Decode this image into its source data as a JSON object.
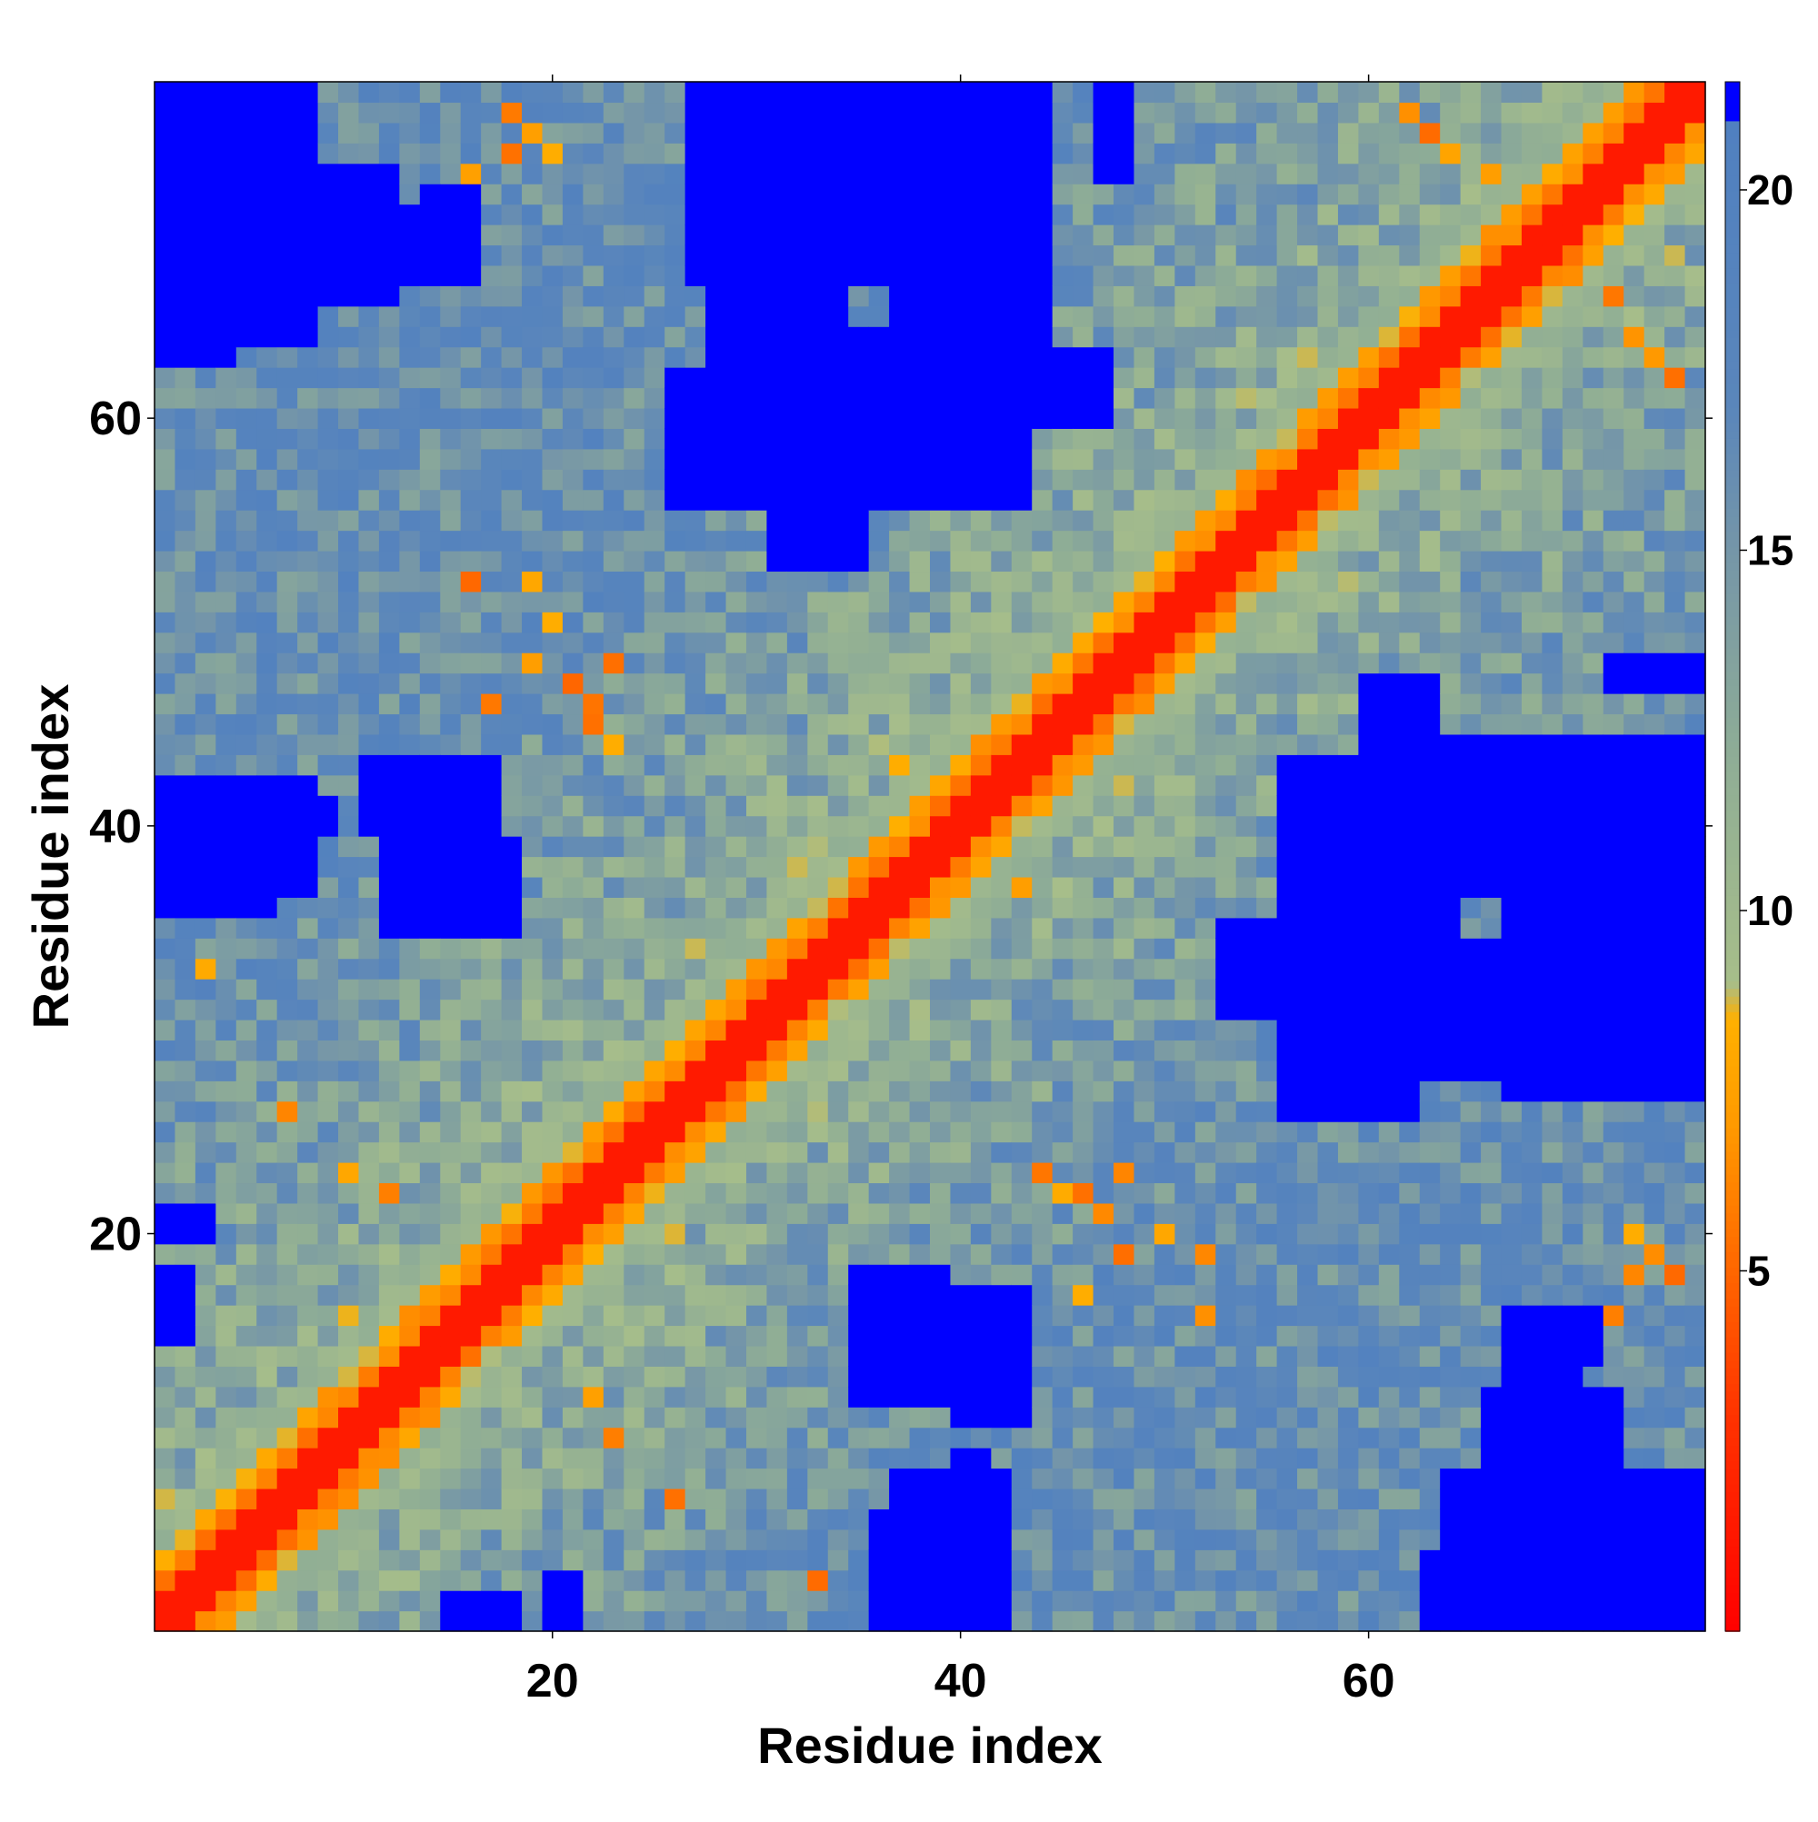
{
  "chart_data": {
    "type": "heatmap",
    "title": "",
    "xlabel": "Residue index",
    "ylabel": "Residue index",
    "n_residues": 76,
    "xlim": [
      1,
      76
    ],
    "ylim": [
      1,
      76
    ],
    "x_ticks": [
      20,
      40,
      60
    ],
    "x_tick_labels": [
      "20",
      "40",
      "60"
    ],
    "y_ticks": [
      20,
      40,
      60
    ],
    "y_tick_labels": [
      "20",
      "40",
      "60"
    ],
    "colorbar": {
      "range": [
        0,
        21.5
      ],
      "ticks": [
        5,
        10,
        15,
        20
      ],
      "tick_labels": [
        "5",
        "10",
        "15",
        "20"
      ],
      "saturation_above": 21,
      "stops": [
        {
          "value": 0,
          "color": "#ff0000"
        },
        {
          "value": 3,
          "color": "#ff3300"
        },
        {
          "value": 5,
          "color": "#ff6600"
        },
        {
          "value": 7,
          "color": "#ff9900"
        },
        {
          "value": 8.5,
          "color": "#ffb000"
        },
        {
          "value": 9,
          "color": "#a7be8a"
        },
        {
          "value": 12,
          "color": "#90ae95"
        },
        {
          "value": 15,
          "color": "#7596a8"
        },
        {
          "value": 17,
          "color": "#5a86bb"
        },
        {
          "value": 21,
          "color": "#5080c0"
        },
        {
          "value": 21.01,
          "color": "#0000ff"
        }
      ]
    },
    "diagonal_distance": 0,
    "blue_regions": [
      {
        "x": [
          1,
          8
        ],
        "y": [
          64,
          76
        ]
      },
      {
        "x": [
          9,
          10
        ],
        "y": [
          66,
          71
        ]
      },
      {
        "x": [
          14,
          16
        ],
        "y": [
          67,
          71
        ]
      },
      {
        "x": [
          28,
          34
        ],
        "y": [
          60,
          76
        ]
      },
      {
        "x": [
          34,
          42
        ],
        "y": [
          56,
          64
        ]
      },
      {
        "x": [
          37,
          44
        ],
        "y": [
          64,
          76
        ]
      },
      {
        "x": [
          43,
          47
        ],
        "y": [
          60,
          63
        ]
      },
      {
        "x": [
          1,
          8
        ],
        "y": [
          37,
          42
        ]
      },
      {
        "x": [
          13,
          16
        ],
        "y": [
          39,
          42
        ]
      },
      {
        "x": [
          12,
          16
        ],
        "y": [
          35,
          38
        ]
      },
      {
        "x": [
          56,
          62
        ],
        "y": [
          26,
          43
        ]
      },
      {
        "x": [
          53,
          56
        ],
        "y": [
          31,
          35
        ]
      },
      {
        "x": [
          63,
          74
        ],
        "y": [
          38,
          43
        ]
      },
      {
        "x": [
          67,
          76
        ],
        "y": [
          27,
          38
        ]
      },
      {
        "x": [
          64,
          66
        ],
        "y": [
          28,
          32
        ]
      },
      {
        "x": [
          35,
          39
        ],
        "y": [
          12,
          18
        ]
      },
      {
        "x": [
          40,
          43
        ],
        "y": [
          11,
          17
        ]
      },
      {
        "x": [
          67,
          70
        ],
        "y": [
          12,
          15
        ]
      },
      {
        "x": [
          66,
          72
        ],
        "y": [
          8,
          12
        ]
      },
      {
        "x": [
          66,
          74
        ],
        "y": [
          1,
          7
        ]
      },
      {
        "x": [
          63,
          66
        ],
        "y": [
          1,
          4
        ]
      },
      {
        "x": [
          36,
          42
        ],
        "y": [
          1,
          6
        ]
      },
      {
        "x": [
          40,
          41
        ],
        "y": [
          6,
          9
        ]
      },
      {
        "x": [
          15,
          18
        ],
        "y": [
          1,
          2
        ]
      },
      {
        "x": [
          20,
          21
        ],
        "y": [
          1,
          3
        ]
      },
      {
        "x": [
          72,
          76
        ],
        "y": [
          47,
          48
        ]
      }
    ],
    "orange_contacts": [
      {
        "x": 16,
        "y": 72
      },
      {
        "x": 16,
        "y": 52
      },
      {
        "x": 17,
        "y": 46
      },
      {
        "x": 19,
        "y": 48
      },
      {
        "x": 20,
        "y": 50
      },
      {
        "x": 22,
        "y": 45
      },
      {
        "x": 23,
        "y": 44
      },
      {
        "x": 18,
        "y": 73
      },
      {
        "x": 19,
        "y": 74
      },
      {
        "x": 37,
        "y": 42
      },
      {
        "x": 38,
        "y": 43
      },
      {
        "x": 39,
        "y": 39
      },
      {
        "x": 41,
        "y": 38
      },
      {
        "x": 43,
        "y": 37
      },
      {
        "x": 46,
        "y": 22
      },
      {
        "x": 48,
        "y": 23
      },
      {
        "x": 50,
        "y": 20
      },
      {
        "x": 52,
        "y": 19
      },
      {
        "x": 47,
        "y": 21
      },
      {
        "x": 74,
        "y": 19
      },
      {
        "x": 75,
        "y": 18
      },
      {
        "x": 73,
        "y": 20
      },
      {
        "x": 66,
        "y": 72
      },
      {
        "x": 70,
        "y": 69
      },
      {
        "x": 72,
        "y": 68
      },
      {
        "x": 62,
        "y": 75
      },
      {
        "x": 63,
        "y": 74
      },
      {
        "x": 64,
        "y": 73
      },
      {
        "x": 55,
        "y": 57
      },
      {
        "x": 57,
        "y": 59
      },
      {
        "x": 60,
        "y": 57
      },
      {
        "x": 7,
        "y": 26
      },
      {
        "x": 10,
        "y": 23
      },
      {
        "x": 12,
        "y": 22
      },
      {
        "x": 3,
        "y": 33
      }
    ]
  }
}
